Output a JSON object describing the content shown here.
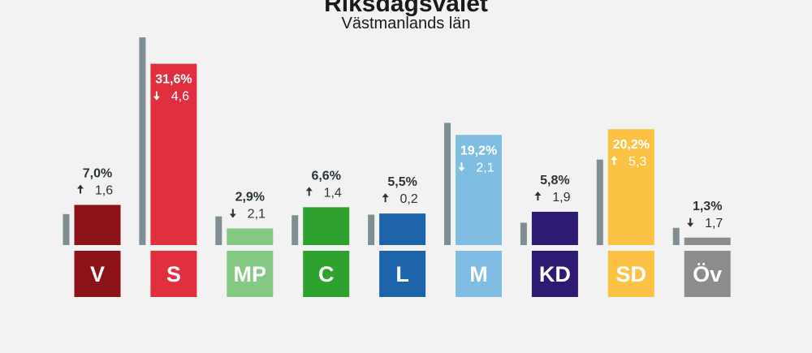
{
  "header": {
    "title": "Riksdagsvalet",
    "subtitle": "Västmanlands län"
  },
  "chart_data": {
    "type": "bar",
    "title": "Riksdagsvalet",
    "subtitle": "Västmanlands län",
    "categories": [
      "V",
      "S",
      "MP",
      "C",
      "L",
      "M",
      "KD",
      "SD",
      "Öv"
    ],
    "series": [
      {
        "values": [
          7.0,
          31.6,
          2.9,
          6.6,
          5.5,
          19.2,
          5.8,
          20.2,
          1.3
        ],
        "labels": [
          "7,0%",
          "31,6%",
          "2,9%",
          "6,6%",
          "5,5%",
          "19,2%",
          "5,8%",
          "20,2%",
          "1,3%"
        ]
      },
      {
        "values": [
          5.4,
          36.2,
          5.0,
          5.2,
          5.3,
          21.3,
          3.9,
          14.9,
          3.0
        ]
      }
    ],
    "changes": [
      {
        "direction": "up",
        "label": "1,6"
      },
      {
        "direction": "down",
        "label": "4,6"
      },
      {
        "direction": "down",
        "label": "2,1"
      },
      {
        "direction": "up",
        "label": "1,4"
      },
      {
        "direction": "up",
        "label": "0,2"
      },
      {
        "direction": "down",
        "label": "2,1"
      },
      {
        "direction": "up",
        "label": "1,9"
      },
      {
        "direction": "up",
        "label": "5,3"
      },
      {
        "direction": "down",
        "label": "1,7"
      }
    ],
    "colors": [
      "#8b1218",
      "#e03040",
      "#84c884",
      "#2ea12e",
      "#1e64aa",
      "#7fbde2",
      "#2e1a73",
      "#fcc244",
      "#8c8c8c"
    ],
    "previous_color": "#7e8e93",
    "label_inside_color": [
      "",
      "#ffffff",
      "",
      "",
      "",
      "#ffffff",
      "",
      "#ffffff",
      ""
    ],
    "text_color": "#2a3438",
    "ylim": [
      0,
      40
    ]
  }
}
